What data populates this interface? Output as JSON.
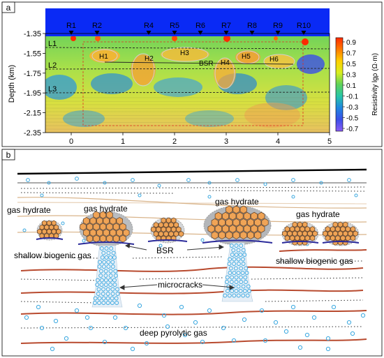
{
  "panel_a": {
    "label": "a",
    "ylabel": "Depth (km)",
    "y_ticks": [
      "-1.35",
      "-1.55",
      "-1.75",
      "-1.95",
      "-2.15",
      "-2.35"
    ],
    "x_ticks": [
      "0",
      "1",
      "2",
      "3",
      "4",
      "5"
    ],
    "receivers": [
      {
        "label": "R1",
        "x": 0.0
      },
      {
        "label": "R2",
        "x": 0.5
      },
      {
        "label": "R4",
        "x": 1.5
      },
      {
        "label": "R5",
        "x": 2.0
      },
      {
        "label": "R6",
        "x": 2.5
      },
      {
        "label": "R7",
        "x": 3.0
      },
      {
        "label": "R8",
        "x": 3.5
      },
      {
        "label": "R9",
        "x": 4.0
      },
      {
        "label": "R10",
        "x": 4.5
      }
    ],
    "layers": [
      "L1",
      "L2",
      "L3"
    ],
    "hydrates": [
      "H1",
      "H2",
      "H3",
      "H4",
      "H5",
      "H6"
    ],
    "bsr_label": "BSR",
    "colorbar": {
      "label": "Resistivity lgρ (Ω·m)",
      "ticks": [
        "0.9",
        "0.7",
        "0.5",
        "0.3",
        "0.1",
        "-0.1",
        "-0.3",
        "-0.5",
        "-0.7"
      ],
      "colors": [
        "#ff2a00",
        "#ff7a00",
        "#ffd000",
        "#d8ee20",
        "#5fd25a",
        "#28c6a8",
        "#1f86e0",
        "#3a4fe8",
        "#8a5cf5"
      ]
    }
  },
  "panel_b": {
    "label": "b",
    "gas_hydrate_labels": [
      "gas hydrate",
      "gas hydrate",
      "gas hydrate",
      "gas hydrate"
    ],
    "shallow_gas_labels": [
      "shallow biogenic gas",
      "shallow biogenic gas"
    ],
    "bsr_label": "BSR",
    "microcracks_label": "microcracks",
    "deep_gas_label": "deep pyrolytic gas",
    "colors": {
      "hydrate_hex": "#f0a456",
      "bubble": "#3aa8e0",
      "layer_brown": "#b84a2e",
      "layer_tan": "#d9b48a",
      "bsr_line": "#2a2a9a"
    }
  }
}
